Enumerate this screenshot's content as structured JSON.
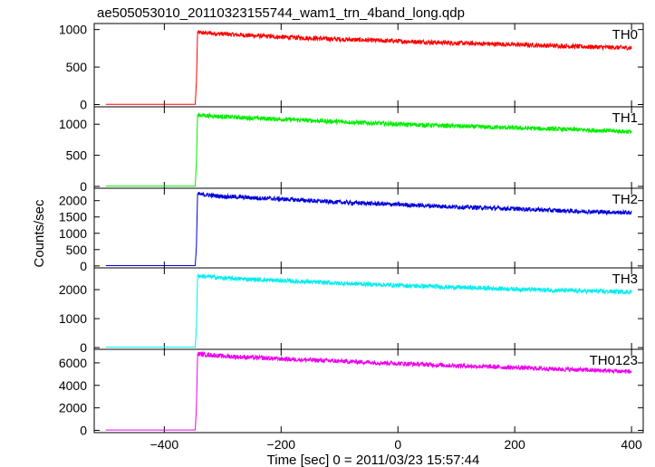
{
  "title": "ae505053010_20110323155744_wam1_trn_4band_long.qdp",
  "ylabel": "Counts/sec",
  "xlabel": "Time [sec] 0 = 2011/03/23 15:57:44",
  "chart_data": {
    "type": "line",
    "title": "ae505053010_20110323155744_wam1_trn_4band_long.qdp",
    "ylabel": "Counts/sec",
    "xlabel": "Time [sec] 0 = 2011/03/23 15:57:44",
    "xlim": [
      -520,
      420
    ],
    "xticks": [
      -400,
      -200,
      0,
      200,
      400
    ],
    "xtick_labels": [
      "−400",
      "−200",
      "0",
      "200",
      "400"
    ],
    "grid": false,
    "panels": [
      {
        "name": "TH0",
        "color": "#ff0000",
        "ylim": [
          -30,
          1080
        ],
        "yticks": [
          0,
          500,
          1000
        ],
        "points": [
          [
            -500,
            3
          ],
          [
            -347,
            3
          ],
          [
            -345,
            300
          ],
          [
            -343,
            960
          ],
          [
            -300,
            940
          ],
          [
            -200,
            900
          ],
          [
            -100,
            870
          ],
          [
            0,
            845
          ],
          [
            100,
            820
          ],
          [
            200,
            800
          ],
          [
            300,
            775
          ],
          [
            400,
            755
          ]
        ]
      },
      {
        "name": "TH1",
        "color": "#00ee00",
        "ylim": [
          -30,
          1280
        ],
        "yticks": [
          0,
          500,
          1000
        ],
        "points": [
          [
            -500,
            5
          ],
          [
            -347,
            5
          ],
          [
            -345,
            400
          ],
          [
            -343,
            1150
          ],
          [
            -300,
            1120
          ],
          [
            -200,
            1080
          ],
          [
            -100,
            1040
          ],
          [
            0,
            1000
          ],
          [
            100,
            970
          ],
          [
            200,
            940
          ],
          [
            300,
            915
          ],
          [
            400,
            880
          ]
        ]
      },
      {
        "name": "TH2",
        "color": "#0000dd",
        "ylim": [
          -60,
          2380
        ],
        "yticks": [
          0,
          500,
          1000,
          1500,
          2000
        ],
        "points": [
          [
            -500,
            10
          ],
          [
            -347,
            10
          ],
          [
            -345,
            600
          ],
          [
            -343,
            2200
          ],
          [
            -300,
            2130
          ],
          [
            -200,
            2050
          ],
          [
            -100,
            1950
          ],
          [
            0,
            1880
          ],
          [
            100,
            1810
          ],
          [
            200,
            1750
          ],
          [
            300,
            1680
          ],
          [
            400,
            1630
          ]
        ]
      },
      {
        "name": "TH3",
        "color": "#00eeee",
        "ylim": [
          -60,
          2750
        ],
        "yticks": [
          0,
          1000,
          2000
        ],
        "points": [
          [
            -500,
            15
          ],
          [
            -347,
            15
          ],
          [
            -345,
            700
          ],
          [
            -343,
            2480
          ],
          [
            -300,
            2400
          ],
          [
            -200,
            2310
          ],
          [
            -100,
            2220
          ],
          [
            0,
            2150
          ],
          [
            100,
            2080
          ],
          [
            200,
            2020
          ],
          [
            300,
            1960
          ],
          [
            400,
            1920
          ]
        ]
      },
      {
        "name": "TH0123",
        "color": "#ee00ee",
        "ylim": [
          -200,
          7200
        ],
        "yticks": [
          0,
          2000,
          4000,
          6000
        ],
        "points": [
          [
            -500,
            30
          ],
          [
            -347,
            30
          ],
          [
            -345,
            2000
          ],
          [
            -343,
            6800
          ],
          [
            -300,
            6600
          ],
          [
            -200,
            6350
          ],
          [
            -100,
            6150
          ],
          [
            0,
            5950
          ],
          [
            100,
            5750
          ],
          [
            200,
            5580
          ],
          [
            300,
            5400
          ],
          [
            400,
            5220
          ]
        ]
      }
    ]
  }
}
